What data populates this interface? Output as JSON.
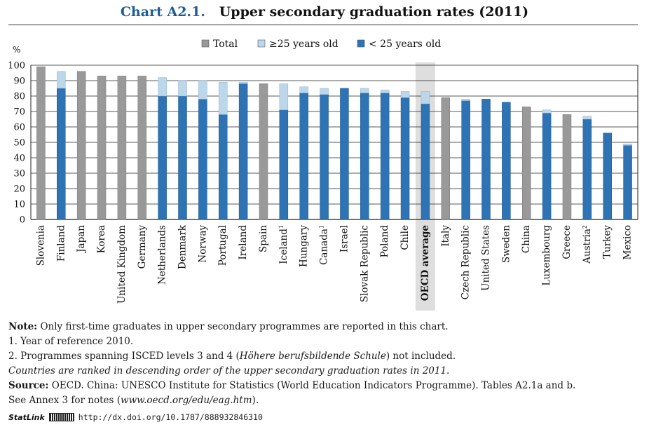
{
  "header": {
    "chart_number": "Chart A2.1.",
    "chart_title": "Upper secondary graduation rates (2011)"
  },
  "colors": {
    "total": "#999999",
    "over25": "#bcd6ea",
    "under25": "#2e73b4",
    "oecd_band": "#dedede",
    "title_blue": "#1d5d95"
  },
  "chart_data": {
    "type": "bar",
    "stacked": true,
    "ylabel": "%",
    "ylim": [
      0,
      100
    ],
    "yticks": [
      0,
      10,
      20,
      30,
      40,
      50,
      60,
      70,
      80,
      90,
      100
    ],
    "grid": true,
    "legend_position": "top",
    "legend": [
      {
        "key": "total",
        "label": "Total"
      },
      {
        "key": "over25",
        "label": "≥25 years old"
      },
      {
        "key": "under25",
        "label": "< 25 years old"
      }
    ],
    "highlight_category": "OECD average",
    "categories": [
      {
        "name": "Slovenia",
        "sup": ""
      },
      {
        "name": "Finland",
        "sup": ""
      },
      {
        "name": "Japan",
        "sup": ""
      },
      {
        "name": "Korea",
        "sup": ""
      },
      {
        "name": "United Kingdom",
        "sup": ""
      },
      {
        "name": "Germany",
        "sup": ""
      },
      {
        "name": "Netherlands",
        "sup": ""
      },
      {
        "name": "Denmark",
        "sup": ""
      },
      {
        "name": "Norway",
        "sup": ""
      },
      {
        "name": "Portugal",
        "sup": ""
      },
      {
        "name": "Ireland",
        "sup": ""
      },
      {
        "name": "Spain",
        "sup": ""
      },
      {
        "name": "Iceland",
        "sup": "1"
      },
      {
        "name": "Hungary",
        "sup": ""
      },
      {
        "name": "Canada",
        "sup": "1"
      },
      {
        "name": "Israel",
        "sup": ""
      },
      {
        "name": "Slovak Republic",
        "sup": ""
      },
      {
        "name": "Poland",
        "sup": ""
      },
      {
        "name": "Chile",
        "sup": ""
      },
      {
        "name": "OECD average",
        "sup": ""
      },
      {
        "name": "Italy",
        "sup": ""
      },
      {
        "name": "Czech Republic",
        "sup": ""
      },
      {
        "name": "United States",
        "sup": ""
      },
      {
        "name": "Sweden",
        "sup": ""
      },
      {
        "name": "China",
        "sup": ""
      },
      {
        "name": "Luxembourg",
        "sup": ""
      },
      {
        "name": "Greece",
        "sup": ""
      },
      {
        "name": "Austria",
        "sup": "2"
      },
      {
        "name": "Turkey",
        "sup": ""
      },
      {
        "name": "Mexico",
        "sup": ""
      }
    ],
    "series": [
      {
        "name": "Total",
        "key": "total",
        "values": [
          99,
          null,
          96,
          93,
          93,
          93,
          null,
          null,
          null,
          null,
          null,
          88,
          null,
          null,
          null,
          null,
          null,
          null,
          null,
          null,
          79,
          null,
          null,
          null,
          73,
          null,
          68,
          null,
          null,
          null
        ]
      },
      {
        "name": "< 25 years old",
        "key": "under25",
        "values": [
          null,
          85,
          null,
          null,
          null,
          null,
          80,
          80,
          78,
          68,
          88,
          null,
          71,
          82,
          81,
          85,
          82,
          82,
          79,
          75,
          null,
          77,
          78,
          76,
          null,
          69,
          null,
          65,
          56,
          48
        ]
      },
      {
        "name": "≥25 years old",
        "key": "over25",
        "values": [
          null,
          11,
          null,
          null,
          null,
          null,
          12,
          10,
          12,
          21,
          1,
          null,
          17,
          4,
          4,
          0,
          3,
          2,
          4,
          8,
          null,
          1,
          0,
          0,
          null,
          2,
          null,
          2,
          0,
          1
        ]
      }
    ]
  },
  "notes": {
    "note_label": "Note:",
    "note_text": " Only first-time graduates in upper secondary programmes are reported in this chart.",
    "fn1": "1. Year of reference 2010.",
    "fn2_pre": "2. Programmes spanning ISCED levels 3 and 4 (",
    "fn2_italic": "Höhere berufsbildende Schule",
    "fn2_post": ") not included.",
    "ranking": "Countries are ranked in descending order of the upper secondary graduation rates in 2011.",
    "source_label": "Source:",
    "source_text": " OECD. China: UNESCO Institute for Statistics (World Education Indicators Programme). Tables A2.1a and b.",
    "annex_pre": "See Annex 3 for notes (",
    "annex_url": "www.oecd.org/edu/eag.htm",
    "annex_post": ")."
  },
  "statlink": {
    "brand": "StatLink",
    "url": "http://dx.doi.org/10.1787/888932846310"
  }
}
